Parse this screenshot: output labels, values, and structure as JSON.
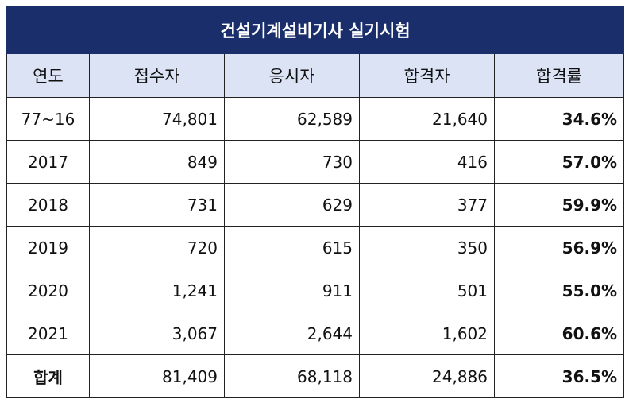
{
  "title": "건설기계설비기사 실기시험",
  "headers": [
    "연도",
    "접수자",
    "응시자",
    "합격자",
    "합격률"
  ],
  "rows": [
    {
      "year": "77~16",
      "applicants": "74,801",
      "examinees": "62,589",
      "passers": "21,640",
      "rate": "34.6%"
    },
    {
      "year": "2017",
      "applicants": "849",
      "examinees": "730",
      "passers": "416",
      "rate": "57.0%"
    },
    {
      "year": "2018",
      "applicants": "731",
      "examinees": "629",
      "passers": "377",
      "rate": "59.9%"
    },
    {
      "year": "2019",
      "applicants": "720",
      "examinees": "615",
      "passers": "350",
      "rate": "56.9%"
    },
    {
      "year": "2020",
      "applicants": "1,241",
      "examinees": "911",
      "passers": "501",
      "rate": "55.0%"
    },
    {
      "year": "2021",
      "applicants": "3,067",
      "examinees": "2,644",
      "passers": "1,602",
      "rate": "60.6%"
    }
  ],
  "total": {
    "year": "합계",
    "applicants": "81,409",
    "examinees": "68,118",
    "passers": "24,886",
    "rate": "36.5%"
  },
  "colors": {
    "title_bg": "#1a2e6b",
    "header_bg": "#dbe3f5"
  }
}
